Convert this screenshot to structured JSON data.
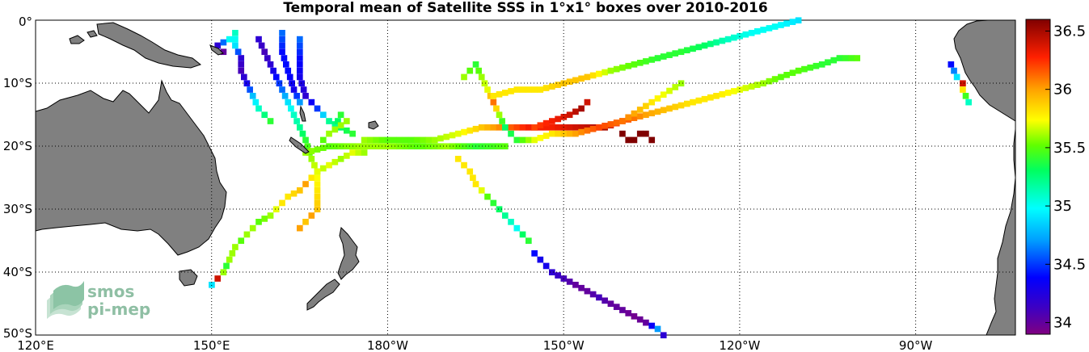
{
  "title": "Temporal mean of Satellite SSS in 1°x1° boxes over 2010-2016",
  "logo": {
    "line1": "smos",
    "line2": "pi-mep"
  },
  "x_ticks": [
    "120°E",
    "150°E",
    "180°W",
    "150°W",
    "120°W",
    "90°W"
  ],
  "y_ticks": [
    "0°",
    "10°S",
    "20°S",
    "30°S",
    "40°S",
    "50°S"
  ],
  "colorbar": {
    "min": 33.9,
    "max": 36.6,
    "tick_labels": [
      "36.5",
      "36",
      "35.5",
      "35",
      "34.5",
      "34"
    ],
    "tick_values": [
      36.5,
      36,
      35.5,
      35,
      34.5,
      34
    ]
  },
  "map_extent": {
    "lon_min": 120,
    "lon_max": 287,
    "lat_min": -50,
    "lat_max": 0
  },
  "chart_data": {
    "type": "heatmap",
    "title": "Temporal mean of Satellite SSS in 1°x1° boxes over 2010-2016",
    "grid": "1°x1° boxes",
    "value_range": [
      33.9,
      36.6
    ],
    "tracks": [
      {
        "points": [
          [
            150,
            -42,
            34.9
          ],
          [
            151,
            -41,
            36.4
          ],
          [
            152,
            -40,
            35.6
          ],
          [
            152.5,
            -39,
            35.4
          ],
          [
            153,
            -38,
            35.6
          ],
          [
            154,
            -36,
            35.6
          ],
          [
            155,
            -35,
            35.5
          ],
          [
            156,
            -34,
            35.6
          ],
          [
            157,
            -33,
            35.6
          ],
          [
            158,
            -32,
            35.5
          ],
          [
            160,
            -31,
            35.6
          ],
          [
            161,
            -30,
            35.7
          ],
          [
            162,
            -29,
            35.8
          ],
          [
            163,
            -28,
            35.8
          ],
          [
            165,
            -27,
            35.9
          ],
          [
            166,
            -26,
            36.0
          ],
          [
            167,
            -25,
            35.8
          ],
          [
            168,
            -24,
            35.6
          ],
          [
            170,
            -23,
            35.7
          ],
          [
            172,
            -22,
            35.6
          ],
          [
            174,
            -21,
            35.7
          ],
          [
            176,
            -21,
            35.6
          ]
        ]
      },
      {
        "points": [
          [
            165,
            -33,
            36.0
          ],
          [
            166,
            -32,
            35.9
          ],
          [
            167,
            -31,
            36.0
          ],
          [
            168,
            -30,
            35.9
          ],
          [
            168,
            -27,
            35.8
          ],
          [
            168,
            -24,
            35.7
          ],
          [
            167,
            -22,
            35.6
          ],
          [
            166,
            -19,
            35.4
          ],
          [
            165,
            -17,
            35.2
          ],
          [
            164,
            -15,
            35.1
          ],
          [
            163,
            -13,
            34.9
          ],
          [
            162,
            -11,
            34.6
          ],
          [
            161,
            -9,
            34.4
          ],
          [
            160,
            -7,
            34.2
          ],
          [
            159,
            -5,
            34.1
          ],
          [
            158,
            -3,
            34.2
          ]
        ]
      },
      {
        "points": [
          [
            165,
            -3,
            34.6
          ],
          [
            165,
            -6,
            34.4
          ],
          [
            165,
            -9,
            34.3
          ],
          [
            166,
            -12,
            34.2
          ],
          [
            168,
            -14,
            34.5
          ],
          [
            170,
            -16,
            35.2
          ],
          [
            172,
            -17,
            35.3
          ],
          [
            174,
            -18,
            35.4
          ]
        ]
      },
      {
        "points": [
          [
            162,
            -2,
            34.6
          ],
          [
            162,
            -5,
            34.4
          ],
          [
            163,
            -8,
            34.4
          ],
          [
            164,
            -11,
            34.3
          ],
          [
            165,
            -13,
            34.7
          ]
        ]
      },
      {
        "points": [
          [
            154,
            -2,
            35.1
          ],
          [
            154,
            -4,
            34.9
          ],
          [
            155,
            -6,
            34.2
          ],
          [
            155,
            -8,
            34.1
          ],
          [
            156,
            -10,
            34.3
          ],
          [
            157,
            -12,
            34.8
          ],
          [
            158,
            -14,
            35.1
          ],
          [
            160,
            -16,
            35.4
          ]
        ]
      },
      {
        "points": [
          [
            152,
            -5,
            34.0
          ],
          [
            151,
            -4,
            34.2
          ],
          [
            153,
            -3,
            35.0
          ]
        ]
      },
      {
        "points": [
          [
            166,
            -21,
            35.6
          ],
          [
            170,
            -20,
            35.5
          ],
          [
            175,
            -20,
            35.6
          ],
          [
            180,
            -20,
            35.6
          ],
          [
            185,
            -20,
            35.5
          ],
          [
            190,
            -20,
            35.6
          ],
          [
            195,
            -20,
            35.4
          ],
          [
            200,
            -20,
            35.5
          ]
        ]
      },
      {
        "points": [
          [
            176,
            -19,
            35.6
          ],
          [
            180,
            -19,
            35.5
          ],
          [
            184,
            -19,
            35.5
          ],
          [
            188,
            -19,
            35.6
          ],
          [
            192,
            -18,
            35.7
          ],
          [
            196,
            -17,
            35.9
          ],
          [
            200,
            -17,
            36.1
          ],
          [
            204,
            -17,
            36.3
          ],
          [
            208,
            -17,
            36.3
          ],
          [
            212,
            -17,
            36.4
          ],
          [
            217,
            -17,
            36.5
          ],
          [
            220,
            -16,
            36.2
          ],
          [
            224,
            -15,
            36.0
          ],
          [
            228,
            -14,
            35.9
          ],
          [
            232,
            -13,
            35.8
          ],
          [
            236,
            -12,
            35.8
          ],
          [
            240,
            -11,
            35.7
          ],
          [
            244,
            -10,
            35.6
          ],
          [
            247,
            -9,
            35.5
          ],
          [
            250,
            -8,
            35.5
          ],
          [
            254,
            -7,
            35.4
          ],
          [
            257,
            -6,
            35.4
          ],
          [
            260,
            -6,
            35.5
          ]
        ]
      },
      {
        "points": [
          [
            192,
            -22,
            35.8
          ],
          [
            193,
            -23,
            35.8
          ],
          [
            194,
            -24,
            35.8
          ],
          [
            195,
            -26,
            35.8
          ],
          [
            196,
            -27,
            35.7
          ],
          [
            197,
            -28,
            35.5
          ],
          [
            198,
            -29,
            35.4
          ],
          [
            199,
            -30,
            35.3
          ],
          [
            200,
            -31,
            35.2
          ],
          [
            201,
            -32,
            35.1
          ],
          [
            202,
            -33,
            35.0
          ],
          [
            203,
            -34,
            35.3
          ],
          [
            204,
            -35,
            35.4
          ]
        ]
      },
      {
        "points": [
          [
            205,
            -37,
            34.4
          ],
          [
            206,
            -38,
            34.3
          ],
          [
            207,
            -39,
            34.3
          ],
          [
            208,
            -40,
            34.2
          ],
          [
            210,
            -41,
            34.1
          ],
          [
            212,
            -42,
            34.0
          ],
          [
            214,
            -43,
            34.0
          ],
          [
            216,
            -44,
            34.1
          ],
          [
            218,
            -45,
            34.0
          ],
          [
            220,
            -46,
            34.0
          ],
          [
            222,
            -47,
            33.95
          ],
          [
            224,
            -48,
            34.0
          ],
          [
            226,
            -49,
            34.7
          ],
          [
            227,
            -50,
            34.2
          ]
        ]
      },
      {
        "points": [
          [
            193,
            -9,
            35.6
          ],
          [
            194,
            -8,
            35.5
          ],
          [
            195,
            -7,
            35.4
          ],
          [
            196,
            -9,
            35.6
          ],
          [
            197,
            -11,
            35.7
          ],
          [
            198,
            -13,
            36.1
          ],
          [
            199,
            -15,
            35.6
          ],
          [
            200,
            -17,
            35.3
          ],
          [
            202,
            -19,
            35.4
          ],
          [
            205,
            -19,
            35.7
          ],
          [
            208,
            -18,
            35.8
          ],
          [
            212,
            -18,
            36.0
          ],
          [
            216,
            -17,
            36.2
          ],
          [
            220,
            -16,
            36.1
          ],
          [
            225,
            -13,
            35.8
          ],
          [
            230,
            -10,
            35.6
          ]
        ]
      },
      {
        "points": [
          [
            198,
            -12,
            35.8
          ],
          [
            202,
            -11,
            35.8
          ],
          [
            206,
            -11,
            35.8
          ],
          [
            210,
            -10,
            35.9
          ],
          [
            214,
            -9,
            35.9
          ],
          [
            218,
            -8,
            35.6
          ],
          [
            222,
            -7,
            35.5
          ],
          [
            226,
            -6,
            35.4
          ],
          [
            230,
            -5,
            35.4
          ],
          [
            234,
            -4,
            35.3
          ],
          [
            238,
            -3,
            35.1
          ],
          [
            242,
            -2,
            35.0
          ],
          [
            246,
            -1,
            35.0
          ],
          [
            250,
            0,
            34.9
          ]
        ]
      },
      {
        "points": [
          [
            205,
            -17,
            36.2
          ],
          [
            208,
            -16,
            36.3
          ],
          [
            211,
            -15,
            36.4
          ],
          [
            213,
            -14,
            36.5
          ],
          [
            214,
            -13,
            36.4
          ]
        ]
      },
      {
        "points": [
          [
            220,
            -18,
            36.6
          ],
          [
            221,
            -19,
            36.6
          ],
          [
            222,
            -19,
            36.6
          ],
          [
            223,
            -18,
            36.6
          ],
          [
            224,
            -18,
            36.6
          ],
          [
            225,
            -19,
            36.6
          ]
        ]
      },
      {
        "points": [
          [
            276,
            -7,
            34.4
          ],
          [
            277,
            -9,
            34.9
          ],
          [
            278,
            -10,
            36.4
          ],
          [
            278,
            -11,
            35.8
          ],
          [
            279,
            -13,
            35.1
          ]
        ]
      },
      {
        "points": [
          [
            171,
            -17,
            35.2
          ],
          [
            172,
            -15,
            35.4
          ],
          [
            173,
            -16,
            35.6
          ],
          [
            170,
            -18,
            35.6
          ],
          [
            169,
            -19,
            35.5
          ]
        ]
      }
    ]
  }
}
